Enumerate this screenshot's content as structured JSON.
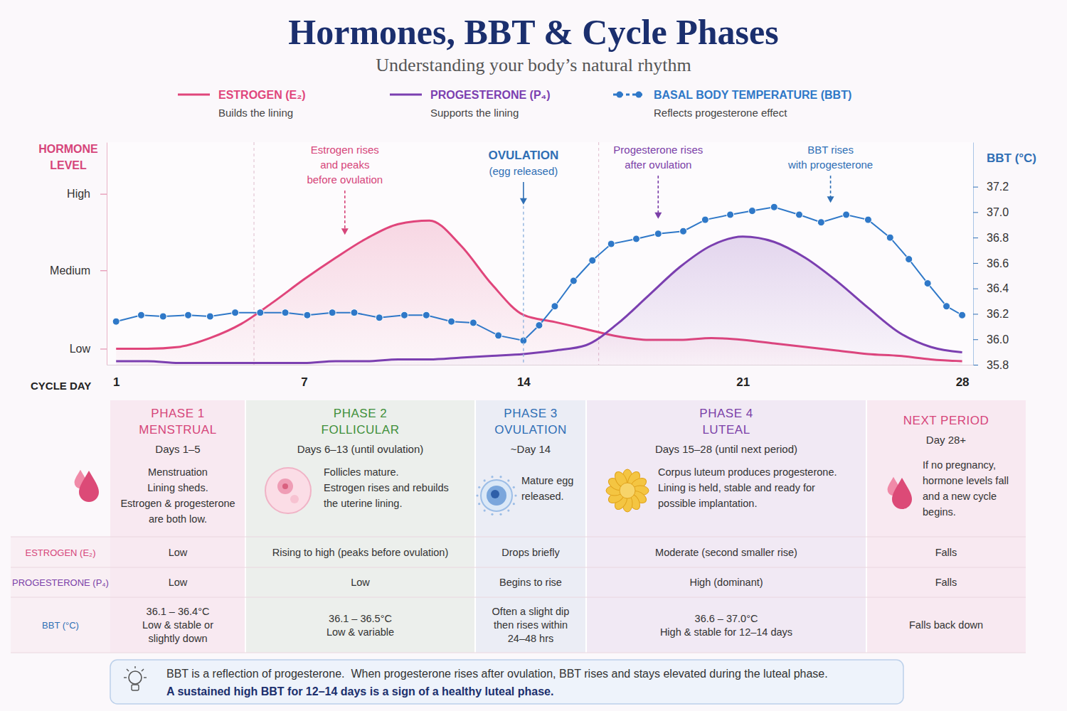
{
  "header": {
    "title": "Hormones, BBT & Cycle Phases",
    "subtitle": "Understanding your body’s natural rhythm"
  },
  "chart_data": {
    "type": "line",
    "x_label": "CYCLE DAY",
    "y_label": "HORMONE LEVEL",
    "y2_label": "BBT (°C)",
    "xlim": [
      0.7,
      28.35
    ],
    "xticks": [
      1,
      7,
      14,
      21,
      28
    ],
    "ylim": [
      0,
      125
    ],
    "yticks": [
      {
        "value": 9,
        "label": "Low"
      },
      {
        "value": 53,
        "label": "Medium"
      },
      {
        "value": 96,
        "label": "High"
      }
    ],
    "y2lim": [
      35.8,
      37.55
    ],
    "y2ticks": [
      35.8,
      {
        "value": 36,
        "label": "36.0"
      },
      36.2,
      36.4,
      36.6,
      36.8,
      {
        "value": 37,
        "label": "37.0"
      },
      37.2
    ],
    "legend": "top",
    "grid": false,
    "series": [
      {
        "name": "ESTROGEN (E₂)",
        "description": "Builds the lining",
        "color": "#e0457b",
        "type": "area",
        "x": [
          1,
          2,
          3,
          4,
          5,
          6,
          7,
          8,
          9,
          10,
          11,
          12,
          13,
          14,
          15,
          16,
          17,
          18,
          19,
          20,
          21,
          22,
          23,
          24,
          25,
          26,
          27,
          28
        ],
        "values": [
          9,
          9,
          10,
          15,
          23,
          35,
          48,
          60,
          71,
          79,
          81,
          67,
          45,
          28,
          24,
          20,
          16,
          14,
          14,
          15,
          14,
          12,
          10,
          8,
          6,
          5,
          3,
          2
        ]
      },
      {
        "name": "PROGESTERONE (P₄)",
        "description": "Supports the lining",
        "color": "#7b3fb0",
        "type": "area",
        "x": [
          1,
          2,
          3,
          4,
          5,
          6,
          7,
          8,
          9,
          10,
          11,
          12,
          13,
          14,
          15,
          16,
          17,
          18,
          19,
          20,
          21,
          22,
          23,
          24,
          25,
          26,
          27,
          28
        ],
        "values": [
          2,
          2,
          1,
          1,
          1,
          1,
          1,
          2,
          2,
          3,
          3,
          4,
          5,
          6,
          8,
          11,
          23,
          39,
          55,
          67,
          72,
          69,
          60,
          47,
          32,
          18,
          10,
          7
        ]
      },
      {
        "name": "BASAL BODY TEMPERATURE (BBT)",
        "description": "Reflects progesterone effect",
        "color": "#2f78c8",
        "type": "line",
        "marker": "circle",
        "axis": "y2",
        "x": [
          1.0,
          1.8,
          2.5,
          3.3,
          4.0,
          4.8,
          5.6,
          6.4,
          7.1,
          7.9,
          8.6,
          9.4,
          10.2,
          10.9,
          11.7,
          12.4,
          13.2,
          14.0,
          14.5,
          15.0,
          15.6,
          16.2,
          16.8,
          17.6,
          18.3,
          19.1,
          19.8,
          20.6,
          21.3,
          22.0,
          22.8,
          23.5,
          24.3,
          25.0,
          25.7,
          26.3,
          26.9,
          27.5,
          28.0
        ],
        "values": [
          36.14,
          36.19,
          36.18,
          36.19,
          36.18,
          36.21,
          36.21,
          36.21,
          36.19,
          36.21,
          36.21,
          36.17,
          36.19,
          36.19,
          36.14,
          36.13,
          36.03,
          35.99,
          36.11,
          36.26,
          36.46,
          36.62,
          36.75,
          36.79,
          36.83,
          36.85,
          36.94,
          36.98,
          37.01,
          37.04,
          36.98,
          36.92,
          36.98,
          36.94,
          36.8,
          36.63,
          36.44,
          36.26,
          36.19
        ]
      }
    ],
    "dividers": [
      5.4,
      16.4
    ],
    "annotations": [
      {
        "text": [
          "Estrogen rises",
          "and peaks",
          "before ovulation"
        ],
        "x": 8.3,
        "y": 73,
        "color": "#d6457a"
      },
      {
        "title": "OVULATION",
        "text": [
          "(egg released)"
        ],
        "x": 14,
        "y": 90,
        "color": "#2f6fb5"
      },
      {
        "text": [
          "Progesterone rises",
          "after ovulation"
        ],
        "x": 18.3,
        "y": 82,
        "color": "#7b3fa8"
      },
      {
        "text": [
          "BBT rises",
          "with progesterone"
        ],
        "x": 23.8,
        "y": 91,
        "color": "#2f6fb5"
      }
    ]
  },
  "phases": [
    {
      "name": [
        "PHASE 1",
        "MENSTRUAL"
      ],
      "days": "Days 1–5",
      "color": "#d6457a",
      "description": [
        "Menstruation",
        "Lining sheds.",
        "Estrogen & progesterone",
        "are both low."
      ]
    },
    {
      "name": [
        "PHASE 2",
        "FOLLICULAR"
      ],
      "days": "Days 6–13 (until ovulation)",
      "color": "#3f8f3a",
      "description": [
        "Follicles mature.",
        "Estrogen rises and rebuilds",
        "the uterine lining."
      ]
    },
    {
      "name": [
        "PHASE 3",
        "OVULATION"
      ],
      "days": "~Day 14",
      "color": "#2f6fb5",
      "description": [
        "Mature egg",
        "released."
      ]
    },
    {
      "name": [
        "PHASE 4",
        "LUTEAL"
      ],
      "days": "Days 15–28 (until next period)",
      "color": "#7b3fa8",
      "description": [
        "Corpus luteum produces progesterone.",
        "Lining is held, stable and ready for",
        "possible implantation."
      ]
    },
    {
      "name": [
        "NEXT PERIOD"
      ],
      "days": "Day 28+",
      "color": "#d6457a",
      "description": [
        "If no pregnancy,",
        "hormone levels fall",
        "and a new cycle",
        "begins."
      ]
    }
  ],
  "table": {
    "rows": [
      {
        "label": "ESTROGEN (E₂)",
        "color": "#d6457a",
        "cells": [
          [
            "Low"
          ],
          [
            "Rising to high (peaks before ovulation)"
          ],
          [
            "Drops briefly"
          ],
          [
            "Moderate (second smaller rise)"
          ],
          [
            "Falls"
          ]
        ]
      },
      {
        "label": "PROGESTERONE (P₄)",
        "color": "#7b3fa8",
        "cells": [
          [
            "Low"
          ],
          [
            "Low"
          ],
          [
            "Begins to rise"
          ],
          [
            "High (dominant)"
          ],
          [
            "Falls"
          ]
        ]
      },
      {
        "label": "BBT (°C)",
        "color": "#2f6fb5",
        "cells": [
          [
            "36.1 – 36.4°C",
            "Low & stable or",
            "slightly down"
          ],
          [
            "36.1 – 36.5°C",
            "Low & variable"
          ],
          [
            "Often a slight dip",
            "then rises within",
            "24–48 hrs"
          ],
          [
            "36.6 – 37.0°C",
            "High & stable for 12–14 days"
          ],
          [
            "Falls back down"
          ]
        ]
      }
    ]
  },
  "footer": {
    "note": "BBT is a reflection of progesterone.  When progesterone rises after ovulation, BBT rises and stays elevated during the luteal phase.",
    "emphasis": "A sustained high BBT for 12–14 days is a sign of a healthy luteal phase."
  }
}
